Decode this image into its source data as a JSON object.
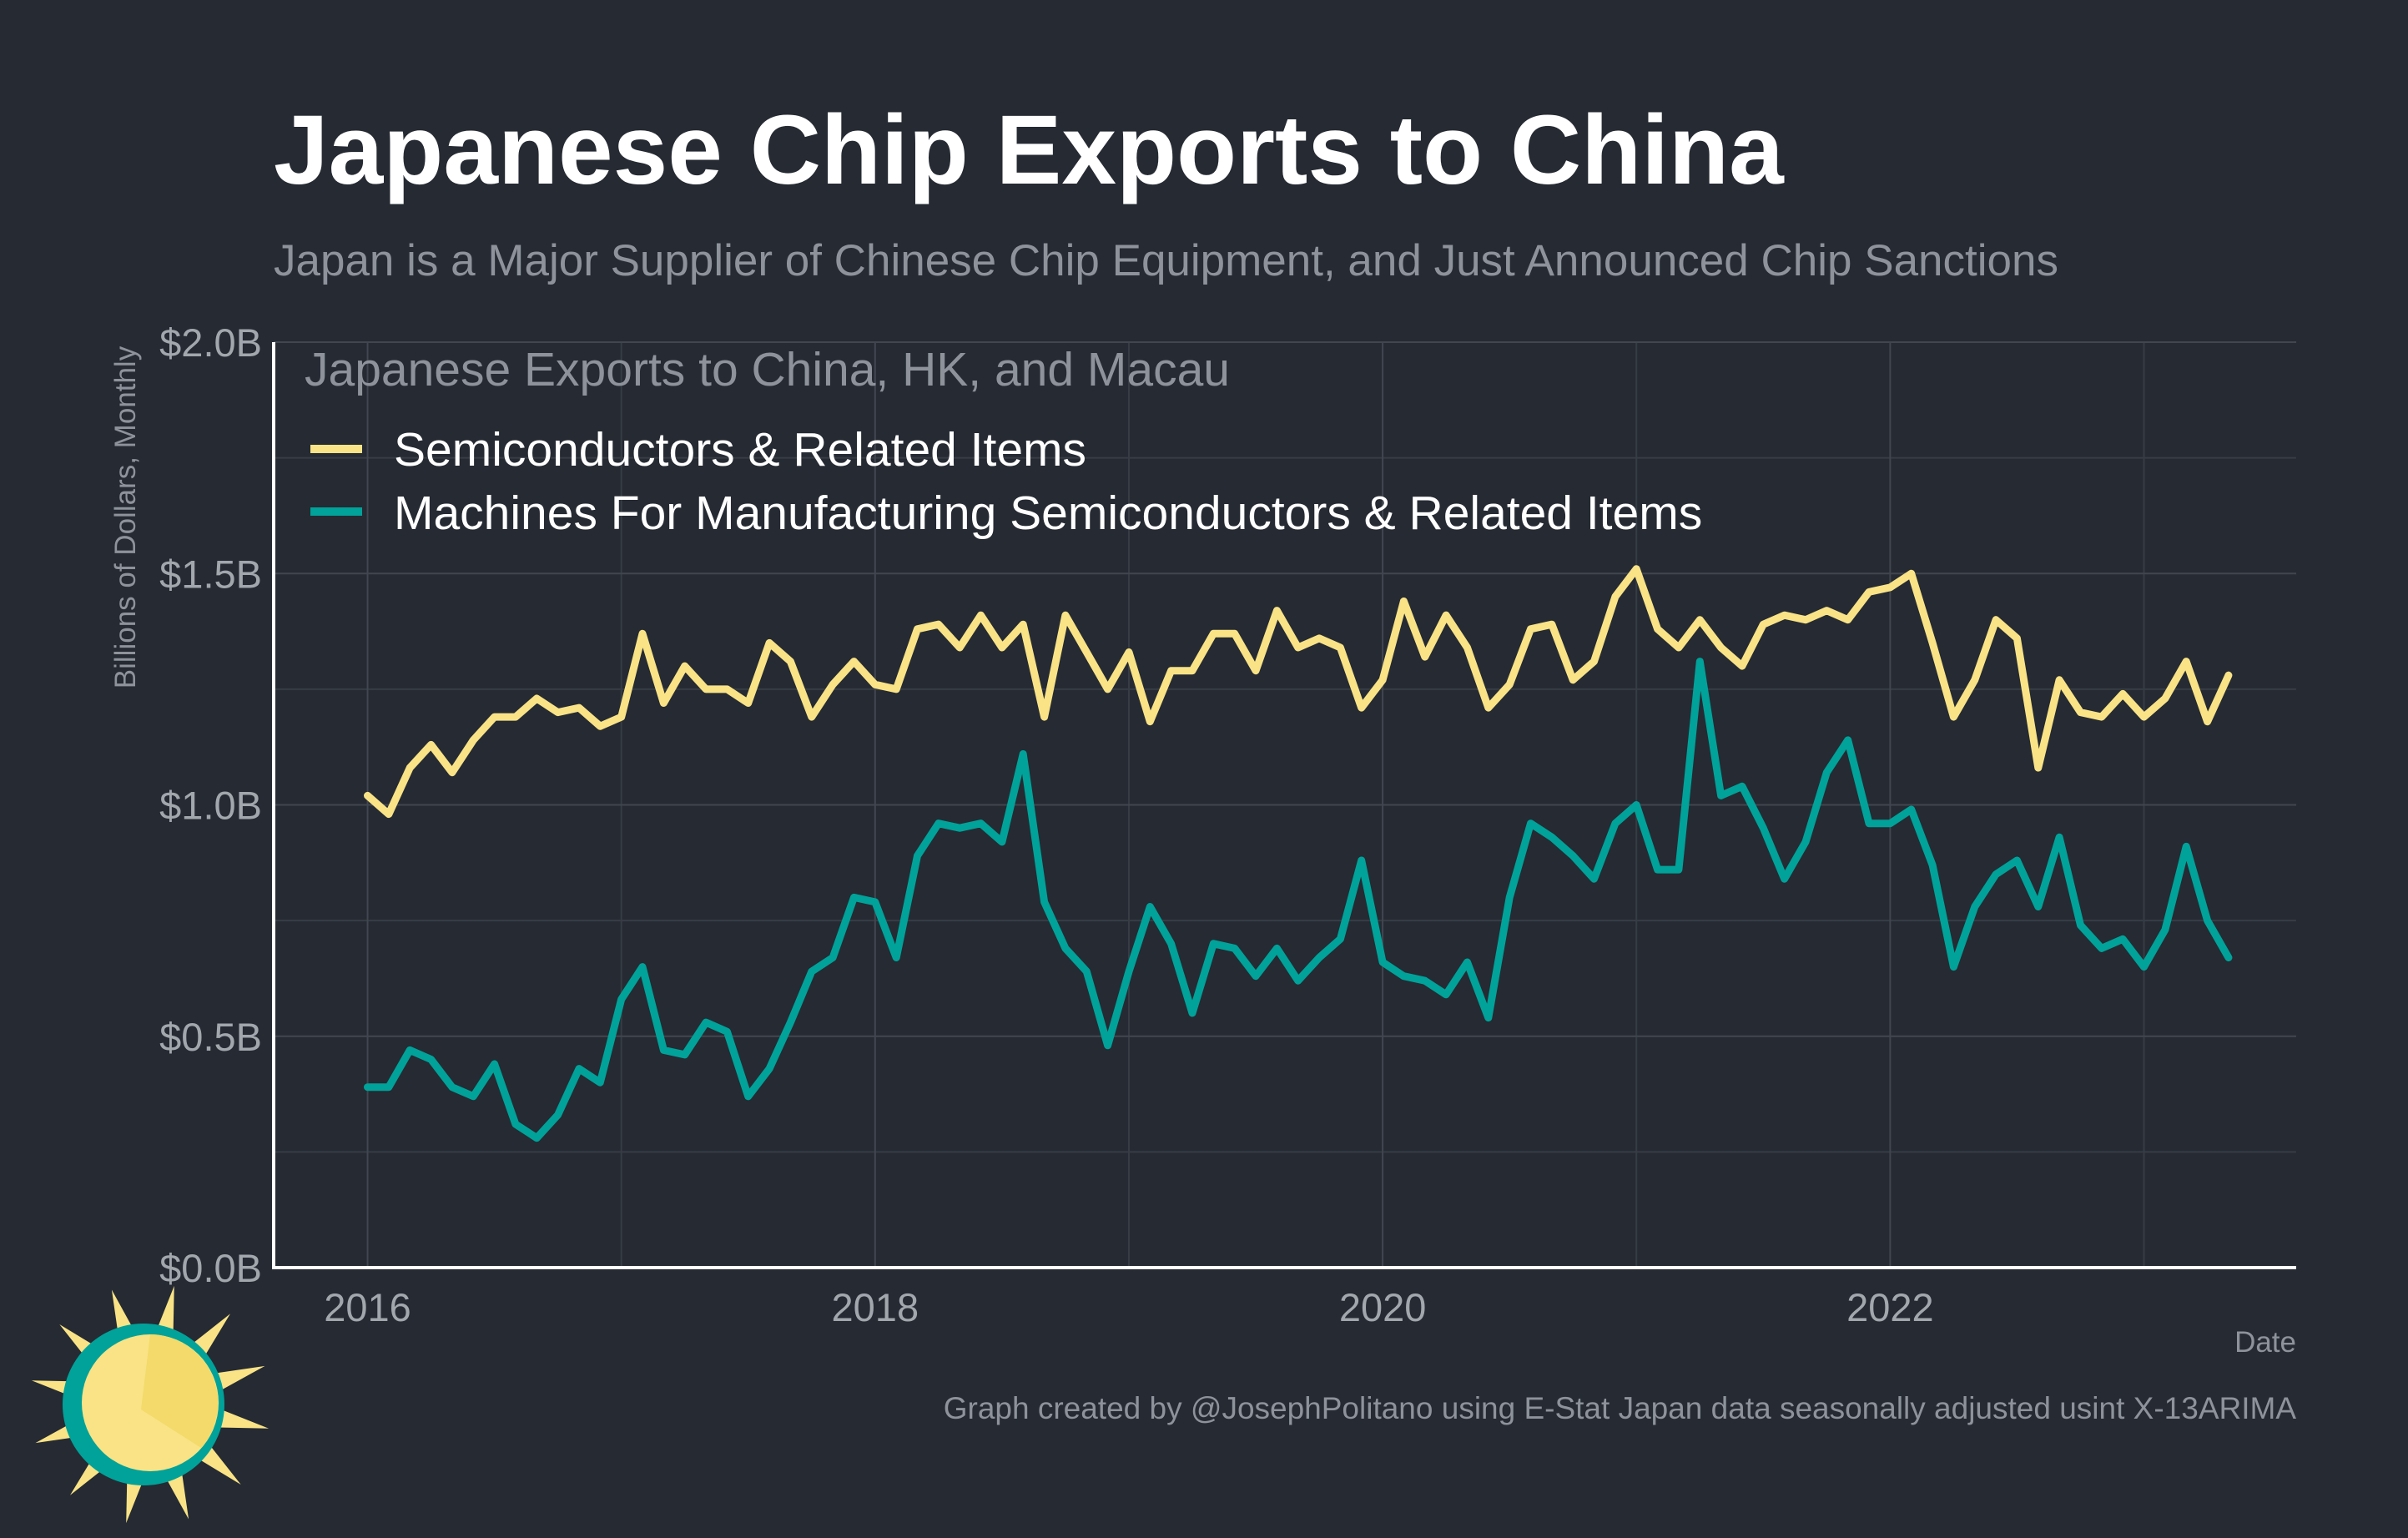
{
  "chart_data": {
    "type": "line",
    "title": "Japanese Chip Exports to China",
    "subtitle": "Japan is a Major Supplier of Chinese Chip Equipment, and Just Announced Chip Sanctions",
    "xlabel": "Date",
    "ylabel": "Billions of Dollars, Monthly",
    "xlim": [
      2015.63,
      2023.6
    ],
    "ylim": [
      0,
      2.0
    ],
    "x_ticks": [
      {
        "value": 2016,
        "label": "2016"
      },
      {
        "value": 2018,
        "label": "2018"
      },
      {
        "value": 2020,
        "label": "2020"
      },
      {
        "value": 2022,
        "label": "2022"
      }
    ],
    "y_ticks": [
      {
        "value": 0.0,
        "label": "$0.0B"
      },
      {
        "value": 0.5,
        "label": "$0.5B"
      },
      {
        "value": 1.0,
        "label": "$1.0B"
      },
      {
        "value": 1.5,
        "label": "$1.5B"
      },
      {
        "value": 2.0,
        "label": "$2.0B"
      }
    ],
    "x_start": "2016-01",
    "legend_title": "Japanese Exports to China, HK, and Macau",
    "legend_position": "top-left",
    "grid": true,
    "series": [
      {
        "name": "Semiconductors & Related Items",
        "color": "#f9e386",
        "values": [
          1.02,
          0.98,
          1.08,
          1.13,
          1.07,
          1.14,
          1.19,
          1.19,
          1.23,
          1.2,
          1.21,
          1.17,
          1.19,
          1.37,
          1.22,
          1.3,
          1.25,
          1.25,
          1.22,
          1.35,
          1.31,
          1.19,
          1.26,
          1.31,
          1.26,
          1.25,
          1.38,
          1.39,
          1.34,
          1.41,
          1.34,
          1.39,
          1.19,
          1.41,
          1.33,
          1.25,
          1.33,
          1.18,
          1.29,
          1.29,
          1.37,
          1.37,
          1.29,
          1.42,
          1.34,
          1.36,
          1.34,
          1.21,
          1.27,
          1.44,
          1.32,
          1.41,
          1.34,
          1.21,
          1.26,
          1.38,
          1.39,
          1.27,
          1.31,
          1.45,
          1.51,
          1.38,
          1.34,
          1.4,
          1.34,
          1.3,
          1.39,
          1.41,
          1.4,
          1.42,
          1.4,
          1.46,
          1.47,
          1.5,
          1.35,
          1.19,
          1.27,
          1.4,
          1.36,
          1.08,
          1.27,
          1.2,
          1.19,
          1.24,
          1.19,
          1.23,
          1.31,
          1.18,
          1.28
        ]
      },
      {
        "name": "Machines For Manufacturing Semiconductors & Related Items",
        "color": "#00a299",
        "values": [
          0.39,
          0.39,
          0.47,
          0.45,
          0.39,
          0.37,
          0.44,
          0.31,
          0.28,
          0.33,
          0.43,
          0.4,
          0.58,
          0.65,
          0.47,
          0.46,
          0.53,
          0.51,
          0.37,
          0.43,
          0.53,
          0.64,
          0.67,
          0.8,
          0.79,
          0.67,
          0.89,
          0.96,
          0.95,
          0.96,
          0.92,
          1.11,
          0.79,
          0.69,
          0.64,
          0.48,
          0.64,
          0.78,
          0.7,
          0.55,
          0.7,
          0.69,
          0.63,
          0.69,
          0.62,
          0.67,
          0.71,
          0.88,
          0.66,
          0.63,
          0.62,
          0.59,
          0.66,
          0.54,
          0.8,
          0.96,
          0.93,
          0.89,
          0.84,
          0.96,
          1.0,
          0.86,
          0.86,
          1.31,
          1.02,
          1.04,
          0.95,
          0.84,
          0.92,
          1.07,
          1.14,
          0.96,
          0.96,
          0.99,
          0.87,
          0.65,
          0.78,
          0.85,
          0.88,
          0.78,
          0.93,
          0.74,
          0.69,
          0.71,
          0.65,
          0.73,
          0.91,
          0.75,
          0.67
        ]
      }
    ]
  },
  "caption": "Graph created by @JosephPolitano using E-Stat Japan data seasonally adjusted usint X-13ARIMA",
  "logo": {
    "icon": "sun-logo-icon",
    "colors": [
      "#f9e386",
      "#00a299"
    ]
  }
}
